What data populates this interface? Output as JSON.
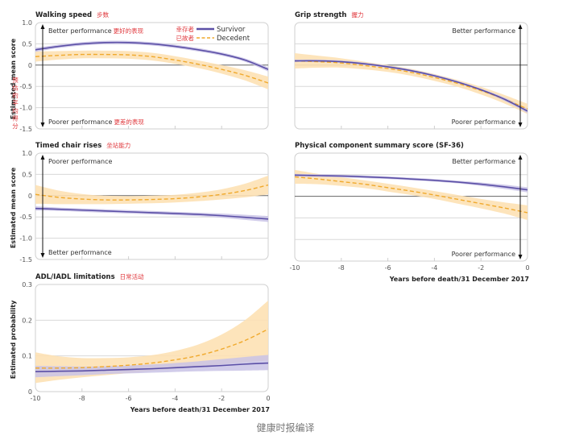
{
  "chart_data": [
    {
      "id": "walking",
      "type": "line",
      "title": "Walking speed",
      "title_zh": "步数",
      "ylabel": "Estimated mean score",
      "ylabel_zh": "预估的平均得分",
      "xlabel": "",
      "xlim": [
        -10,
        0
      ],
      "ylim": [
        -1.5,
        1.0
      ],
      "yticks": [
        1.0,
        0.5,
        0,
        -0.5,
        -1.0,
        -1.5
      ],
      "ytick_labels": [
        "1.0",
        "0.5",
        "0",
        "-0.5",
        "-1.0",
        "-1.5"
      ],
      "xticks": [
        -10,
        -8,
        -6,
        -4,
        -2,
        0
      ],
      "xtick_labels": [],
      "zero_line": true,
      "arrow_side": "left",
      "top_annotation": "Better performance",
      "top_annotation_zh": "更好的表现",
      "bottom_annotation": "Poorer performance",
      "bottom_annotation_zh": "更差的表现",
      "legend": [
        {
          "name": "Survivor",
          "name_zh": "幸存者",
          "style": "solid"
        },
        {
          "name": "Decedent",
          "name_zh": "已故者",
          "style": "dashed"
        }
      ],
      "legend_position": "top-right",
      "x": [
        -10,
        -9,
        -8,
        -7,
        -6,
        -5,
        -4,
        -3,
        -2,
        -1,
        0
      ],
      "series": [
        {
          "name": "Survivor",
          "values": [
            0.36,
            0.44,
            0.5,
            0.53,
            0.53,
            0.5,
            0.44,
            0.36,
            0.26,
            0.12,
            -0.1
          ],
          "ci_half": [
            0.05,
            0.04,
            0.04,
            0.04,
            0.04,
            0.04,
            0.04,
            0.04,
            0.04,
            0.04,
            0.05
          ]
        },
        {
          "name": "Decedent",
          "values": [
            0.2,
            0.23,
            0.25,
            0.25,
            0.24,
            0.2,
            0.12,
            0.02,
            -0.1,
            -0.24,
            -0.42
          ],
          "ci_half": [
            0.12,
            0.1,
            0.09,
            0.09,
            0.09,
            0.09,
            0.09,
            0.09,
            0.1,
            0.12,
            0.15
          ]
        }
      ]
    },
    {
      "id": "grip",
      "type": "line",
      "title": "Grip strength",
      "title_zh": "握力",
      "xlim": [
        -10,
        0
      ],
      "ylim": [
        -1.5,
        1.0
      ],
      "yticks": [
        1.0,
        0.5,
        0,
        -0.5,
        -1.0,
        -1.5
      ],
      "ytick_labels": [],
      "xticks": [
        -10,
        -8,
        -6,
        -4,
        -2,
        0
      ],
      "xtick_labels": [],
      "zero_line": true,
      "arrow_side": "right",
      "top_annotation": "Better performance",
      "bottom_annotation": "Poorer performance",
      "x": [
        -10,
        -9,
        -8,
        -7,
        -6,
        -5,
        -4,
        -3,
        -2,
        -1,
        0
      ],
      "series": [
        {
          "name": "Survivor",
          "values": [
            0.1,
            0.1,
            0.08,
            0.03,
            -0.04,
            -0.13,
            -0.25,
            -0.4,
            -0.58,
            -0.8,
            -1.08
          ],
          "ci_half": [
            0.03,
            0.03,
            0.03,
            0.03,
            0.03,
            0.03,
            0.03,
            0.03,
            0.03,
            0.04,
            0.05
          ]
        },
        {
          "name": "Decedent",
          "values": [
            0.1,
            0.08,
            0.05,
            -0.01,
            -0.08,
            -0.17,
            -0.29,
            -0.43,
            -0.6,
            -0.8,
            -1.03
          ],
          "ci_half": [
            0.18,
            0.14,
            0.11,
            0.09,
            0.08,
            0.08,
            0.08,
            0.08,
            0.09,
            0.1,
            0.12
          ]
        }
      ]
    },
    {
      "id": "chair",
      "type": "line",
      "title": "Timed chair rises",
      "title_zh": "坐站能力",
      "ylabel": "Estimated mean score",
      "xlim": [
        -10,
        0
      ],
      "ylim": [
        -1.5,
        1.0
      ],
      "yticks": [
        1.0,
        0.5,
        0,
        -0.5,
        -1.0,
        -1.5
      ],
      "ytick_labels": [
        "1.0",
        "0.5",
        "0",
        "-0.5",
        "-1.0",
        "-1.5"
      ],
      "xticks": [
        -10,
        -8,
        -6,
        -4,
        -2,
        0
      ],
      "xtick_labels": [],
      "zero_line": true,
      "arrow_side": "left",
      "top_annotation": "Poorer performance",
      "bottom_annotation": "Better performance",
      "x": [
        -10,
        -9,
        -8,
        -7,
        -6,
        -5,
        -4,
        -3,
        -2,
        -1,
        0
      ],
      "series": [
        {
          "name": "Survivor",
          "values": [
            -0.3,
            -0.32,
            -0.34,
            -0.36,
            -0.38,
            -0.4,
            -0.42,
            -0.44,
            -0.47,
            -0.51,
            -0.55
          ],
          "ci_half": [
            0.05,
            0.04,
            0.04,
            0.04,
            0.04,
            0.04,
            0.04,
            0.04,
            0.05,
            0.06,
            0.07
          ]
        },
        {
          "name": "Decedent",
          "values": [
            0.03,
            -0.04,
            -0.08,
            -0.1,
            -0.1,
            -0.09,
            -0.07,
            -0.03,
            0.03,
            0.12,
            0.25
          ],
          "ci_half": [
            0.22,
            0.16,
            0.12,
            0.1,
            0.09,
            0.09,
            0.09,
            0.1,
            0.12,
            0.16,
            0.22
          ]
        }
      ]
    },
    {
      "id": "pcs",
      "type": "line",
      "title": "Physical component summary score (SF-36)",
      "xlabel": "Years before death/31 December 2017",
      "xlim": [
        -10,
        0
      ],
      "ylim": [
        -1.5,
        1.0
      ],
      "yticks": [
        1.0,
        0.5,
        0,
        -0.5,
        -1.0,
        -1.5
      ],
      "ytick_labels": [],
      "xticks": [
        -10,
        -8,
        -6,
        -4,
        -2,
        0
      ],
      "xtick_labels": [
        "-10",
        "-8",
        "-6",
        "-4",
        "-2",
        "0"
      ],
      "zero_line": true,
      "arrow_side": "right",
      "top_annotation": "Better performance",
      "bottom_annotation": "Poorer performance",
      "x": [
        -10,
        -9,
        -8,
        -7,
        -6,
        -5,
        -4,
        -3,
        -2,
        -1,
        0
      ],
      "series": [
        {
          "name": "Survivor",
          "values": [
            0.49,
            0.48,
            0.47,
            0.45,
            0.43,
            0.4,
            0.37,
            0.33,
            0.28,
            0.22,
            0.15
          ],
          "ci_half": [
            0.03,
            0.03,
            0.03,
            0.03,
            0.03,
            0.03,
            0.03,
            0.03,
            0.04,
            0.05,
            0.06
          ]
        },
        {
          "name": "Decedent",
          "values": [
            0.45,
            0.4,
            0.34,
            0.28,
            0.2,
            0.12,
            0.03,
            -0.07,
            -0.17,
            -0.27,
            -0.38
          ],
          "ci_half": [
            0.16,
            0.12,
            0.1,
            0.09,
            0.09,
            0.09,
            0.09,
            0.1,
            0.11,
            0.13,
            0.17
          ]
        }
      ]
    },
    {
      "id": "adl",
      "type": "line",
      "title": "ADL/IADL limitations",
      "title_zh": "日常活动",
      "ylabel": "Estimated probability",
      "xlabel": "Years before death/31 December 2017",
      "xlim": [
        -10,
        0
      ],
      "ylim": [
        0,
        0.3
      ],
      "yticks": [
        0.3,
        0.2,
        0.1,
        0
      ],
      "ytick_labels": [
        "0.3",
        "0.2",
        "0.1",
        "0"
      ],
      "xticks": [
        -10,
        -8,
        -6,
        -4,
        -2,
        0
      ],
      "xtick_labels": [
        "-10",
        "-8",
        "-6",
        "-4",
        "-2",
        "0"
      ],
      "zero_line": false,
      "arrow_side": "none",
      "x": [
        -10,
        -9,
        -8,
        -7,
        -6,
        -5,
        -4,
        -3,
        -2,
        -1,
        0
      ],
      "series": [
        {
          "name": "Survivor",
          "values": [
            0.056,
            0.057,
            0.058,
            0.06,
            0.062,
            0.064,
            0.067,
            0.07,
            0.073,
            0.077,
            0.08
          ],
          "ci_lo": [
            0.04,
            0.043,
            0.046,
            0.049,
            0.051,
            0.053,
            0.055,
            0.057,
            0.058,
            0.059,
            0.06
          ],
          "ci_hi": [
            0.072,
            0.071,
            0.07,
            0.071,
            0.073,
            0.076,
            0.08,
            0.085,
            0.091,
            0.097,
            0.103
          ]
        },
        {
          "name": "Decedent",
          "values": [
            0.066,
            0.066,
            0.067,
            0.07,
            0.074,
            0.08,
            0.089,
            0.101,
            0.119,
            0.143,
            0.175
          ],
          "ci_lo": [
            0.024,
            0.033,
            0.04,
            0.046,
            0.052,
            0.058,
            0.064,
            0.07,
            0.076,
            0.082,
            0.087
          ],
          "ci_hi": [
            0.11,
            0.099,
            0.094,
            0.094,
            0.096,
            0.102,
            0.114,
            0.132,
            0.16,
            0.2,
            0.255
          ]
        }
      ]
    }
  ],
  "colors": {
    "survivor": "#5b4fa6",
    "survivor_ci": "#c9c3e6",
    "decedent": "#f0a92c",
    "decedent_ci": "#fde1b4",
    "grid": "#d8d8d8",
    "zero": "#666666",
    "frame": "#cfcfcf"
  },
  "credit": "健康时报编译"
}
